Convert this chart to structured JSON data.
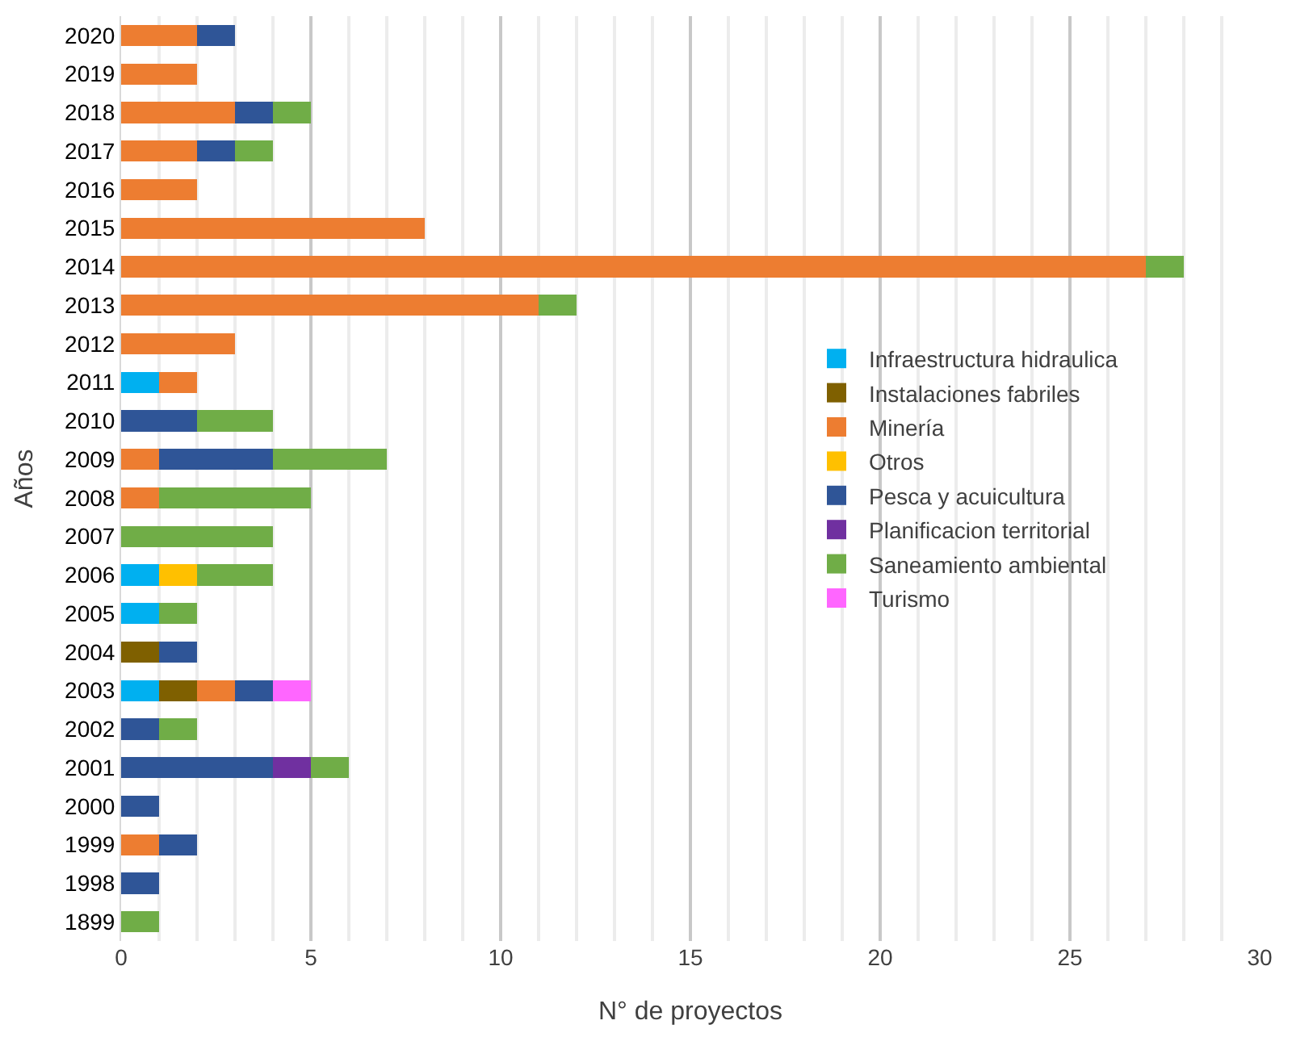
{
  "chart_data": {
    "type": "bar",
    "orientation": "horizontal",
    "stacked": true,
    "xlabel": "N° de proyectos",
    "ylabel": "Años",
    "categories": [
      "2020",
      "2019",
      "2018",
      "2017",
      "2016",
      "2015",
      "2014",
      "2013",
      "2012",
      "2011",
      "2010",
      "2009",
      "2008",
      "2007",
      "2006",
      "2005",
      "2004",
      "2003",
      "2002",
      "2001",
      "2000",
      "1999",
      "1998",
      "1899"
    ],
    "series": [
      {
        "name": "Infraestructura hidraulica",
        "color": "#00b0f0",
        "values": [
          0,
          0,
          0,
          0,
          0,
          0,
          0,
          0,
          0,
          1,
          0,
          0,
          0,
          0,
          1,
          1,
          0,
          1,
          0,
          0,
          0,
          0,
          0,
          0
        ]
      },
      {
        "name": "Instalaciones fabriles",
        "color": "#7f6000",
        "values": [
          0,
          0,
          0,
          0,
          0,
          0,
          0,
          0,
          0,
          0,
          0,
          0,
          0,
          0,
          0,
          0,
          1,
          1,
          0,
          0,
          0,
          0,
          0,
          0
        ]
      },
      {
        "name": "Minería",
        "color": "#ed7d31",
        "values": [
          2,
          2,
          3,
          2,
          2,
          8,
          27,
          11,
          3,
          1,
          0,
          1,
          1,
          0,
          0,
          0,
          0,
          1,
          0,
          0,
          0,
          1,
          0,
          0
        ]
      },
      {
        "name": "Otros",
        "color": "#ffc000",
        "values": [
          0,
          0,
          0,
          0,
          0,
          0,
          0,
          0,
          0,
          0,
          0,
          0,
          0,
          0,
          1,
          0,
          0,
          0,
          0,
          0,
          0,
          0,
          0,
          0
        ]
      },
      {
        "name": "Pesca y acuicultura",
        "color": "#2f5597",
        "values": [
          1,
          0,
          1,
          1,
          0,
          0,
          0,
          0,
          0,
          0,
          2,
          3,
          0,
          0,
          0,
          0,
          1,
          1,
          1,
          4,
          1,
          1,
          1,
          0
        ]
      },
      {
        "name": "Planificacion territorial",
        "color": "#7030a0",
        "values": [
          0,
          0,
          0,
          0,
          0,
          0,
          0,
          0,
          0,
          0,
          0,
          0,
          0,
          0,
          0,
          0,
          0,
          0,
          0,
          1,
          0,
          0,
          0,
          0
        ]
      },
      {
        "name": "Saneamiento ambiental",
        "color": "#70ad47",
        "values": [
          0,
          0,
          1,
          1,
          0,
          0,
          1,
          1,
          0,
          0,
          2,
          3,
          4,
          4,
          2,
          1,
          0,
          0,
          1,
          1,
          0,
          0,
          0,
          1
        ]
      },
      {
        "name": "Turismo",
        "color": "#ff66ff",
        "values": [
          0,
          0,
          0,
          0,
          0,
          0,
          0,
          0,
          0,
          0,
          0,
          0,
          0,
          0,
          0,
          0,
          0,
          1,
          0,
          0,
          0,
          0,
          0,
          0
        ]
      }
    ],
    "xlim": [
      0,
      30
    ],
    "xticks": [
      0,
      5,
      10,
      15,
      20,
      25,
      30
    ],
    "grid": "x",
    "legend": "right"
  }
}
